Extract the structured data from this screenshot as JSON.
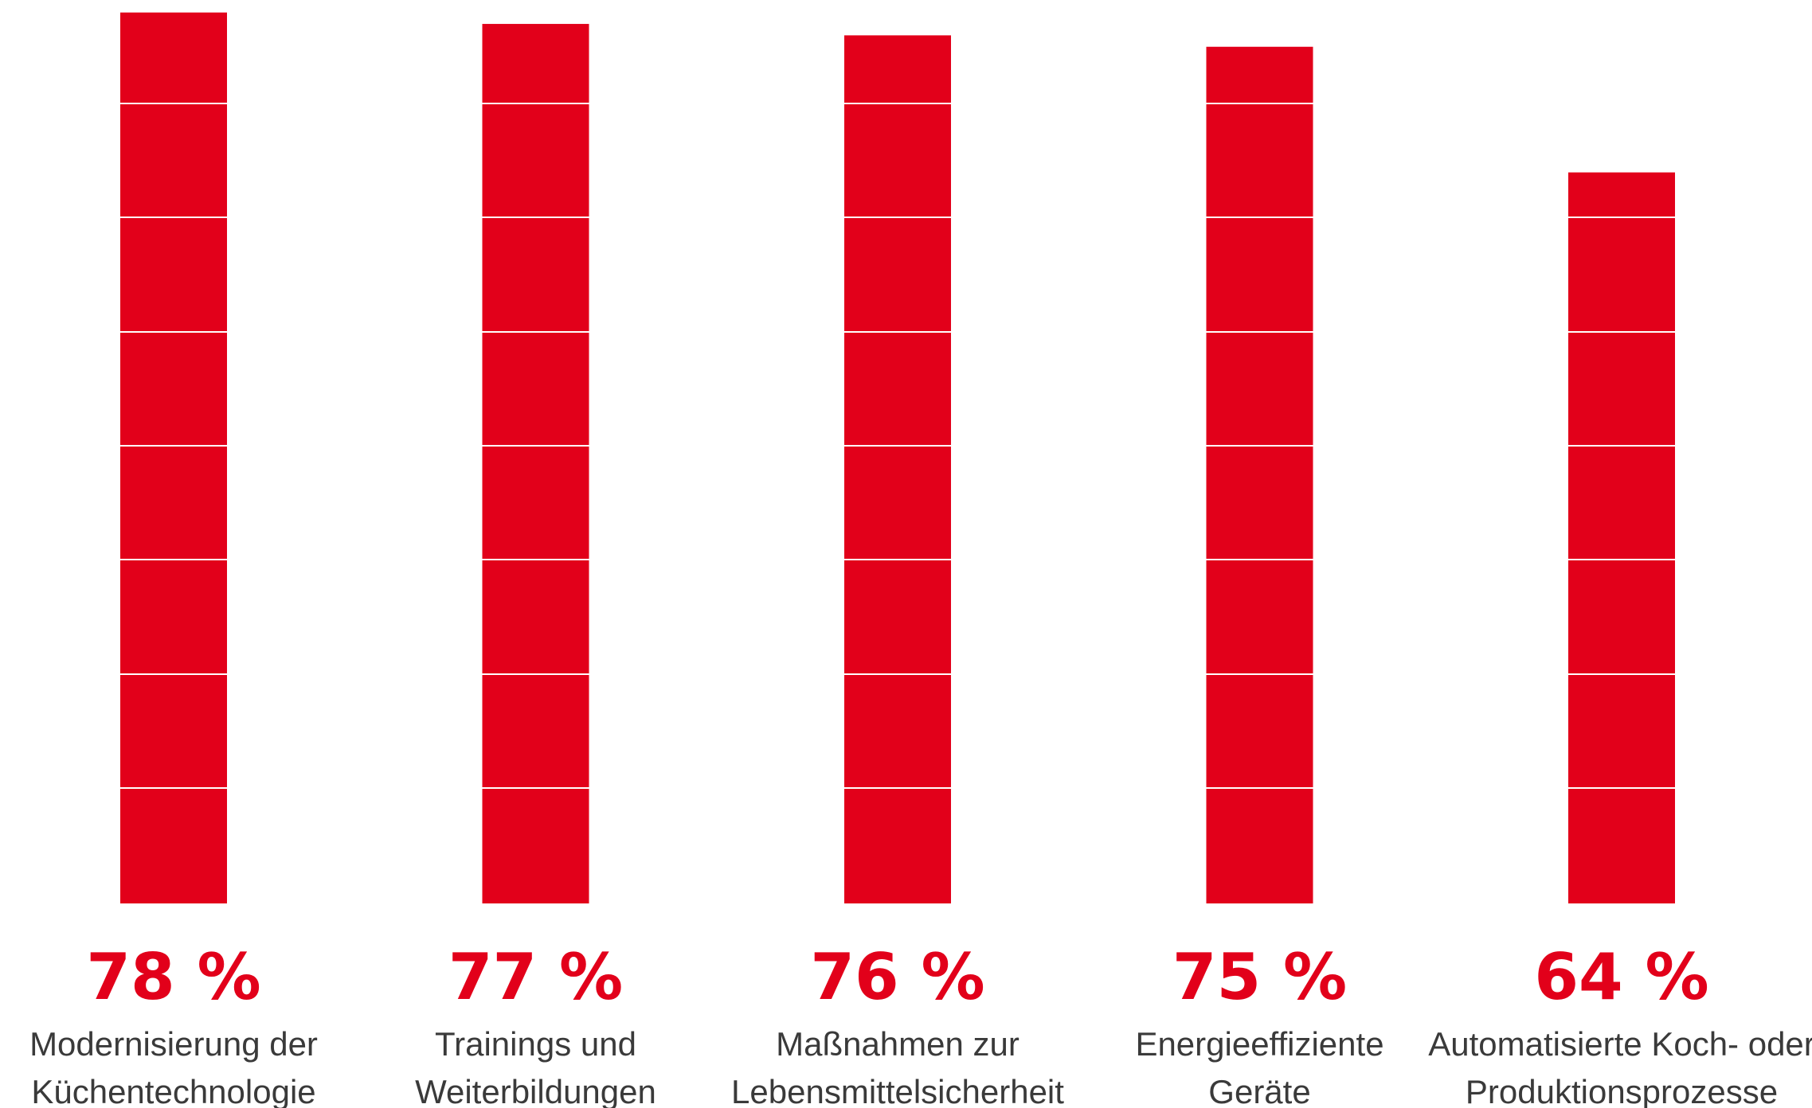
{
  "chart_data": {
    "type": "bar",
    "categories": [
      [
        "Modernisierung der",
        "Küchentechnologie"
      ],
      [
        "Trainings und",
        "Weiterbildungen"
      ],
      [
        "Maßnahmen zur",
        "Lebensmittelsicherheit"
      ],
      [
        "Energieeffiziente",
        "Geräte"
      ],
      [
        "Automatisierte Koch- oder",
        "Produktionsprozesse"
      ]
    ],
    "values": [
      78,
      77,
      76,
      75,
      64
    ],
    "value_labels": [
      "78 %",
      "77 %",
      "76 %",
      "75 %",
      "64 %"
    ],
    "ylim": [
      0,
      80
    ],
    "grid": false,
    "colors": {
      "bar": "#e2001a",
      "segment_line": "#ffffff",
      "value_text": "#e2001a",
      "category_text": "#3a3a3a"
    }
  }
}
